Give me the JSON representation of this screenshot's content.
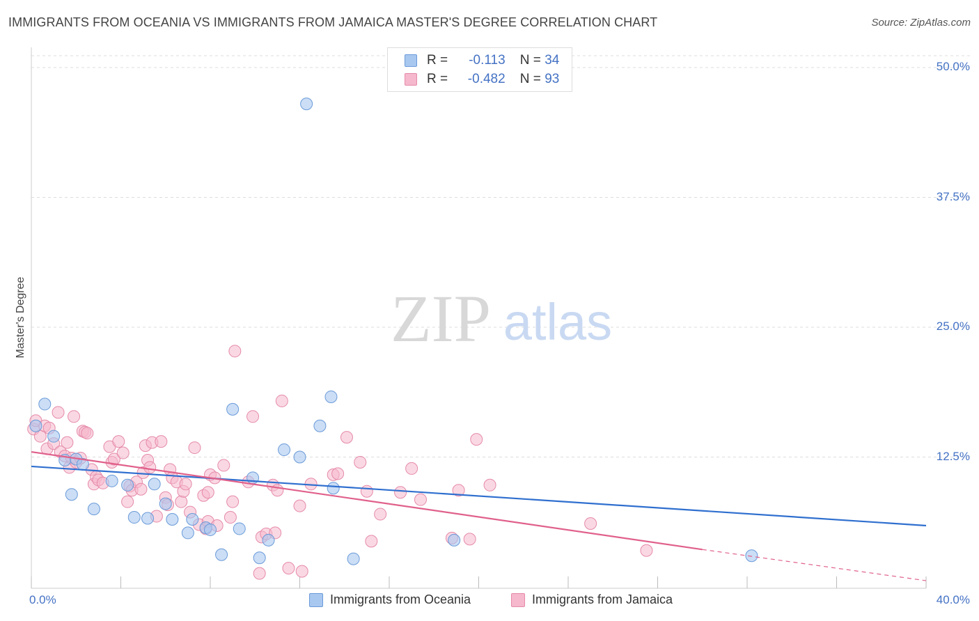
{
  "title": "IMMIGRANTS FROM OCEANIA VS IMMIGRANTS FROM JAMAICA MASTER'S DEGREE CORRELATION CHART",
  "source": "Source: ZipAtlas.com",
  "watermark": {
    "zip": "ZIP",
    "atlas": "atlas"
  },
  "colors": {
    "oceania_fill": "#a9c8f0",
    "oceania_stroke": "#6a9ad8",
    "oceania_line": "#2f6fcf",
    "jamaica_fill": "#f5b8cc",
    "jamaica_stroke": "#e58aa8",
    "jamaica_line": "#e0608a",
    "tick_label": "#4472c4",
    "grid": "#dddddd"
  },
  "legend": {
    "rows": [
      {
        "r_label": "R =",
        "r_value": "-0.113",
        "n_label": "N =",
        "n_value": "34"
      },
      {
        "r_label": "R =",
        "r_value": "-0.482",
        "n_label": "N =",
        "n_value": "93"
      }
    ]
  },
  "chart_data": {
    "type": "scatter",
    "title": "IMMIGRANTS FROM OCEANIA VS IMMIGRANTS FROM JAMAICA MASTER'S DEGREE CORRELATION CHART",
    "xlabel": "",
    "ylabel": "Master's Degree",
    "xlim": [
      0,
      40
    ],
    "ylim": [
      0,
      52
    ],
    "x_tick_labels": [
      "0.0%",
      "40.0%"
    ],
    "y_ticks": [
      12.5,
      25.0,
      37.5,
      50.0
    ],
    "y_tick_labels": [
      "12.5%",
      "25.0%",
      "37.5%",
      "50.0%"
    ],
    "grid": true,
    "legend_placement": "top-center and bottom",
    "series": [
      {
        "name": "Immigrants from Oceania",
        "r": -0.113,
        "n": 34,
        "trend": {
          "x": [
            0,
            40
          ],
          "y": [
            11.6,
            5.9
          ]
        },
        "points": [
          [
            0.2,
            15.5
          ],
          [
            0.6,
            17.6
          ],
          [
            1.0,
            14.5
          ],
          [
            1.5,
            12.2
          ],
          [
            1.8,
            8.9
          ],
          [
            2.0,
            12.3
          ],
          [
            2.3,
            11.8
          ],
          [
            2.8,
            7.5
          ],
          [
            3.6,
            10.2
          ],
          [
            4.3,
            9.8
          ],
          [
            4.6,
            6.7
          ],
          [
            5.2,
            6.6
          ],
          [
            5.5,
            9.9
          ],
          [
            6.0,
            8.0
          ],
          [
            6.3,
            6.5
          ],
          [
            7.0,
            5.2
          ],
          [
            7.2,
            6.5
          ],
          [
            7.8,
            5.7
          ],
          [
            8.0,
            5.5
          ],
          [
            8.5,
            3.1
          ],
          [
            9.0,
            17.1
          ],
          [
            9.3,
            5.6
          ],
          [
            9.9,
            10.5
          ],
          [
            10.2,
            2.8
          ],
          [
            10.6,
            4.5
          ],
          [
            11.3,
            13.2
          ],
          [
            12.0,
            12.5
          ],
          [
            12.3,
            46.5
          ],
          [
            12.9,
            15.5
          ],
          [
            13.4,
            18.3
          ],
          [
            13.5,
            9.5
          ],
          [
            14.4,
            2.7
          ],
          [
            18.9,
            4.5
          ],
          [
            32.2,
            3.0
          ]
        ]
      },
      {
        "name": "Immigrants from Jamaica",
        "r": -0.482,
        "n": 93,
        "trend": {
          "x": [
            0,
            30,
            40
          ],
          "y": [
            13.0,
            3.6,
            0.6
          ]
        },
        "points": [
          [
            0.1,
            15.2
          ],
          [
            0.2,
            16.0
          ],
          [
            0.4,
            14.5
          ],
          [
            0.6,
            15.5
          ],
          [
            0.7,
            13.3
          ],
          [
            0.8,
            15.3
          ],
          [
            1.0,
            13.8
          ],
          [
            1.2,
            16.8
          ],
          [
            1.3,
            13.0
          ],
          [
            1.5,
            12.6
          ],
          [
            1.6,
            13.9
          ],
          [
            1.7,
            11.5
          ],
          [
            1.8,
            12.4
          ],
          [
            1.9,
            16.4
          ],
          [
            2.0,
            12.0
          ],
          [
            2.2,
            12.4
          ],
          [
            2.3,
            15.0
          ],
          [
            2.4,
            14.9
          ],
          [
            2.5,
            14.8
          ],
          [
            2.7,
            11.3
          ],
          [
            2.8,
            9.9
          ],
          [
            2.9,
            10.6
          ],
          [
            3.0,
            10.3
          ],
          [
            3.2,
            10.0
          ],
          [
            3.5,
            13.5
          ],
          [
            3.6,
            12.0
          ],
          [
            3.7,
            12.3
          ],
          [
            3.9,
            14.0
          ],
          [
            4.1,
            12.9
          ],
          [
            4.3,
            8.2
          ],
          [
            4.4,
            9.7
          ],
          [
            4.5,
            9.3
          ],
          [
            4.7,
            10.1
          ],
          [
            4.9,
            9.4
          ],
          [
            5.0,
            11.0
          ],
          [
            5.1,
            13.6
          ],
          [
            5.2,
            12.2
          ],
          [
            5.3,
            11.5
          ],
          [
            5.4,
            13.9
          ],
          [
            5.6,
            6.8
          ],
          [
            5.8,
            14.0
          ],
          [
            6.0,
            8.6
          ],
          [
            6.1,
            7.9
          ],
          [
            6.2,
            11.3
          ],
          [
            6.3,
            10.5
          ],
          [
            6.5,
            10.1
          ],
          [
            6.7,
            8.2
          ],
          [
            6.8,
            9.2
          ],
          [
            6.9,
            9.9
          ],
          [
            7.1,
            7.2
          ],
          [
            7.3,
            13.4
          ],
          [
            7.5,
            6.0
          ],
          [
            7.7,
            8.8
          ],
          [
            7.9,
            9.1
          ],
          [
            8.0,
            10.8
          ],
          [
            8.2,
            10.5
          ],
          [
            7.8,
            5.6
          ],
          [
            7.9,
            6.3
          ],
          [
            8.3,
            5.9
          ],
          [
            8.6,
            11.7
          ],
          [
            8.9,
            6.7
          ],
          [
            9.0,
            8.2
          ],
          [
            9.1,
            22.7
          ],
          [
            9.7,
            10.1
          ],
          [
            9.9,
            16.4
          ],
          [
            10.2,
            1.3
          ],
          [
            10.3,
            4.8
          ],
          [
            10.5,
            5.1
          ],
          [
            10.8,
            9.8
          ],
          [
            10.9,
            5.2
          ],
          [
            11.0,
            9.3
          ],
          [
            11.2,
            17.9
          ],
          [
            11.5,
            1.8
          ],
          [
            12.0,
            7.8
          ],
          [
            12.1,
            1.5
          ],
          [
            12.5,
            9.9
          ],
          [
            13.5,
            10.8
          ],
          [
            13.7,
            10.9
          ],
          [
            14.1,
            14.4
          ],
          [
            14.7,
            12.0
          ],
          [
            15.0,
            9.2
          ],
          [
            15.2,
            4.4
          ],
          [
            15.6,
            7.0
          ],
          [
            16.5,
            9.1
          ],
          [
            17.0,
            11.4
          ],
          [
            17.4,
            8.4
          ],
          [
            18.8,
            4.7
          ],
          [
            19.1,
            9.3
          ],
          [
            19.6,
            4.6
          ],
          [
            19.9,
            14.2
          ],
          [
            20.5,
            9.8
          ],
          [
            25.0,
            6.1
          ],
          [
            27.5,
            3.5
          ]
        ]
      }
    ]
  },
  "bottom_legend": [
    {
      "label": "Immigrants from Oceania"
    },
    {
      "label": "Immigrants from Jamaica"
    }
  ]
}
